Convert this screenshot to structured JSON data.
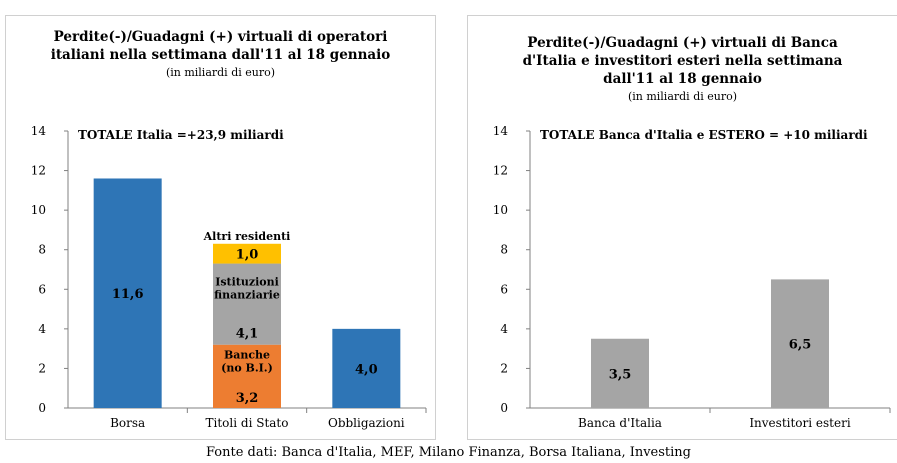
{
  "chart_data": [
    {
      "type": "bar",
      "stacked": true,
      "title_line1": "Perdite(-)/Guadagni (+) virtuali di operatori",
      "title_line2": "italiani nella settimana dall'11 al 18 gennaio",
      "subtitle": "(in miliardi di euro)",
      "annotation": "TOTALE Italia =+23,9 miliardi",
      "categories": [
        "Borsa",
        "Titoli di Stato",
        "Obbligazioni"
      ],
      "ylim": [
        0,
        14
      ],
      "yticks": [
        0,
        2,
        4,
        6,
        8,
        10,
        12,
        14
      ],
      "grid": false,
      "series": [
        {
          "label": "",
          "color": "#2e75b6",
          "values": [
            11.6,
            0,
            4.0
          ],
          "data_labels": [
            "11,6",
            "",
            "4,0"
          ]
        },
        {
          "label": "Banche (no B.I.)",
          "color": "#ed7d31",
          "values": [
            0,
            3.2,
            0
          ],
          "data_labels": [
            "",
            "3,2",
            ""
          ]
        },
        {
          "label": "Istituzioni finanziarie",
          "color": "#a5a5a5",
          "values": [
            0,
            4.1,
            0
          ],
          "data_labels": [
            "",
            "4,1",
            ""
          ]
        },
        {
          "label": "Altri residenti",
          "color": "#ffc000",
          "values": [
            0,
            1.0,
            0
          ],
          "data_labels": [
            "",
            "1,0",
            ""
          ]
        }
      ]
    },
    {
      "type": "bar",
      "title_line1": "Perdite(-)/Guadagni (+)  virtuali di Banca",
      "title_line2": "d'Italia e investitori esteri  nella settimana",
      "title_line3": "dall'11 al 18 gennaio",
      "subtitle": "(in miliardi di euro)",
      "annotation": "TOTALE Banca d'Italia e ESTERO = +10 miliardi",
      "categories": [
        "Banca d'Italia",
        "Investitori esteri"
      ],
      "ylim": [
        0,
        14
      ],
      "yticks": [
        0,
        2,
        4,
        6,
        8,
        10,
        12,
        14
      ],
      "grid": false,
      "bar_color": "#a5a5a5",
      "values": [
        3.5,
        6.5
      ],
      "data_labels": [
        "3,5",
        "6,5"
      ]
    }
  ],
  "source": "Fonte dati: Banca d'Italia, MEF, Milano Finanza, Borsa Italiana, Investing"
}
